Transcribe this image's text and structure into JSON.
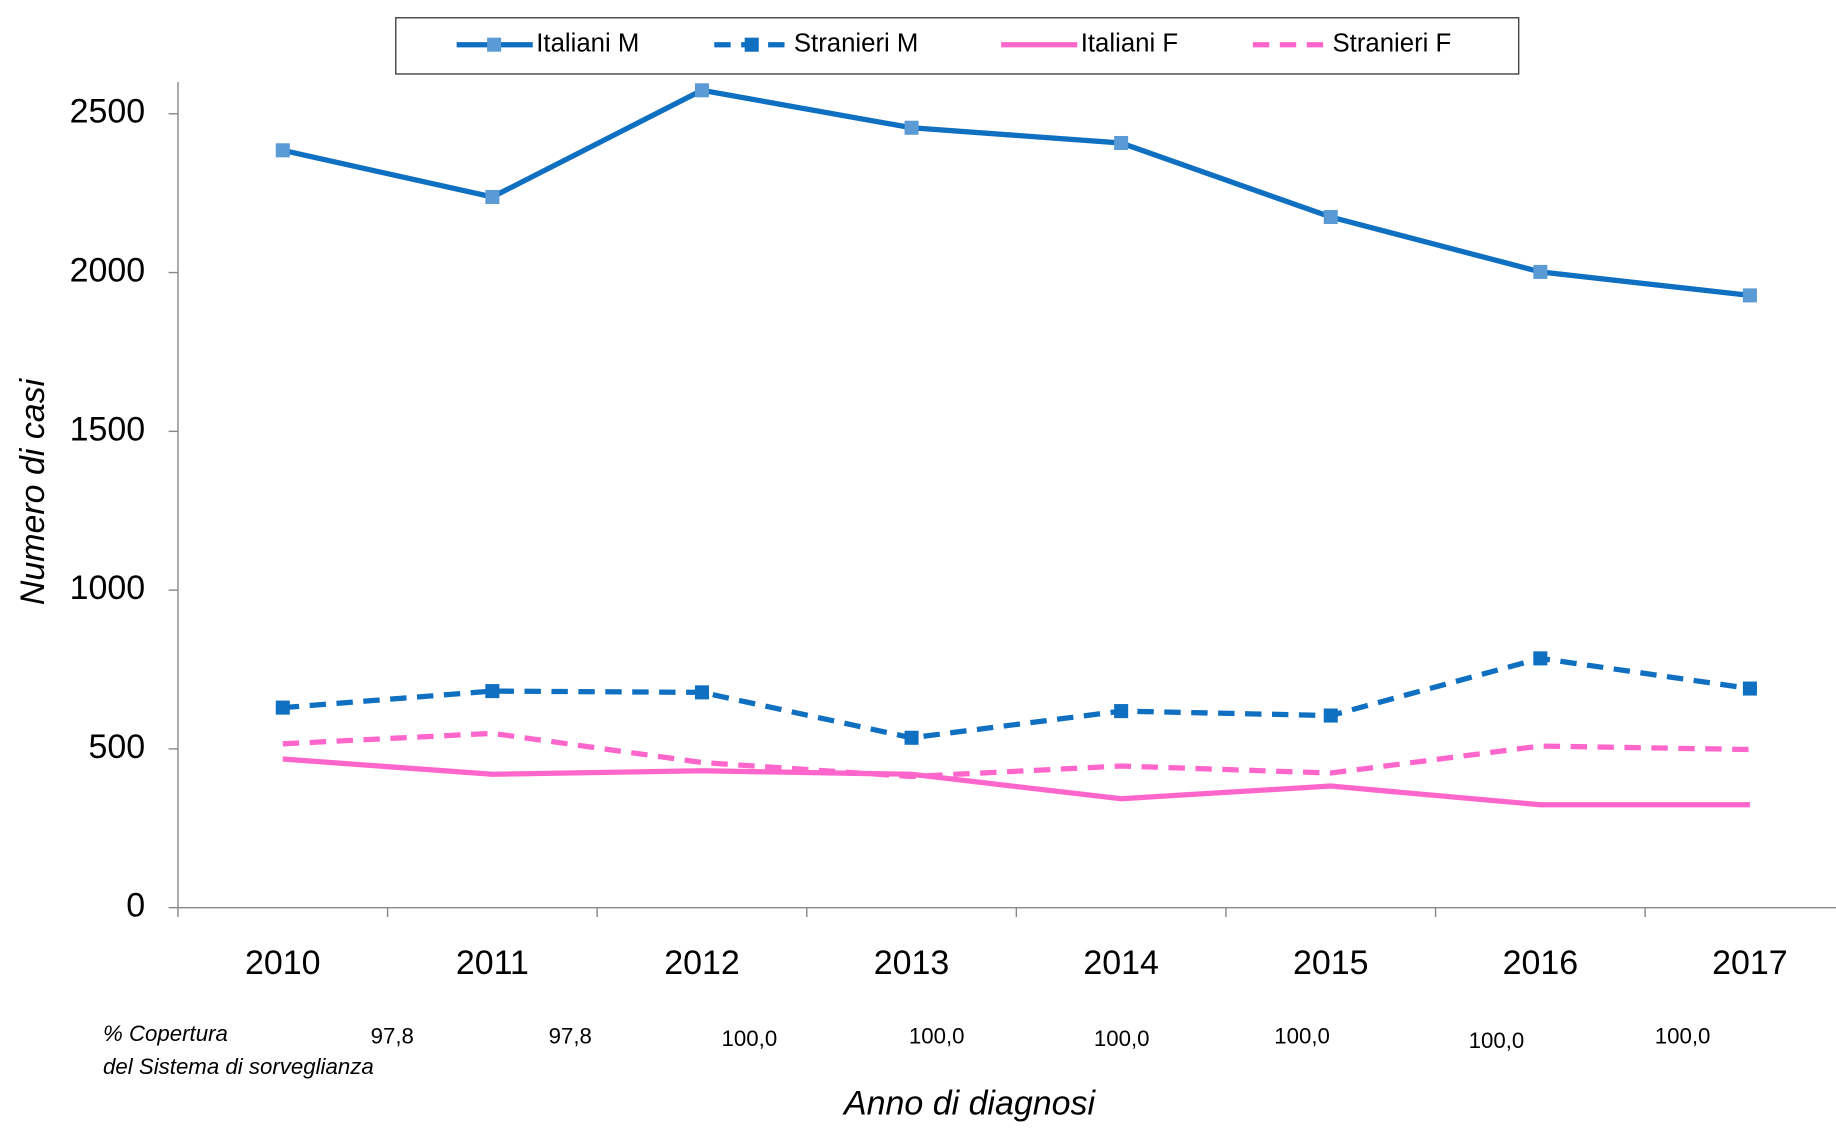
{
  "chart_data": {
    "type": "line",
    "x_label": "Anno di diagnosi",
    "y_label": "Numero di casi",
    "categories": [
      "2010",
      "2011",
      "2012",
      "2013",
      "2014",
      "2015",
      "2016",
      "2017"
    ],
    "series": [
      {
        "name": "Italiani M",
        "color": "#0f6fc0",
        "marker_color": "#5b9bd5",
        "dash": false,
        "marker": true,
        "values": [
          2385,
          2238,
          2574,
          2456,
          2408,
          2175,
          2002,
          1928
        ]
      },
      {
        "name": "Stranieri M",
        "color": "#0f6fc0",
        "marker_color": "#0f6fc0",
        "dash": true,
        "marker": true,
        "values": [
          630,
          682,
          678,
          535,
          619,
          605,
          785,
          690
        ]
      },
      {
        "name": "Italiani F",
        "color": "#ff66cc",
        "dash": false,
        "marker": false,
        "values": [
          468,
          420,
          431,
          420,
          343,
          383,
          324,
          324
        ]
      },
      {
        "name": "Stranieri F",
        "color": "#ff66cc",
        "dash": true,
        "marker": false,
        "values": [
          516,
          549,
          457,
          413,
          446,
          424,
          509,
          498
        ]
      }
    ],
    "ylim": [
      0,
      2600
    ],
    "yticks": [
      0,
      500,
      1000,
      1500,
      2000,
      2500
    ],
    "legend": "top",
    "coverage": {
      "label": [
        "% Copertura",
        "del Sistema di sorveglianza"
      ],
      "values": [
        "97,8",
        "97,8",
        "100,0",
        "100,0",
        "100,0",
        "100,0",
        "100,0",
        "100,0"
      ]
    }
  }
}
